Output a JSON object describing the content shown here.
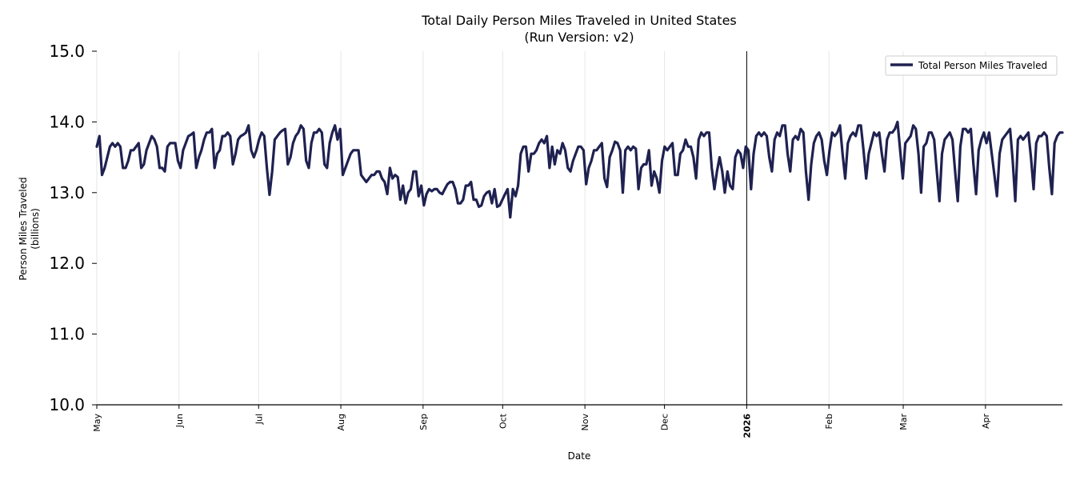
{
  "chart_data": {
    "type": "line",
    "title": "Total Daily Person Miles Traveled in United States",
    "subtitle": "(Run Version: v2)",
    "xlabel": "Date",
    "ylabel": "Person Miles Traveled",
    "ylabel_unit": "(billions)",
    "ylim": [
      10.0,
      15.0
    ],
    "yticks": [
      "10.0",
      "11.0",
      "12.0",
      "13.0",
      "14.0",
      "15.0"
    ],
    "x_range": [
      "2025-05-01",
      "2026-04-30"
    ],
    "xticks": [
      {
        "date": "2025-05-01",
        "label": "May"
      },
      {
        "date": "2025-06-01",
        "label": "Jun"
      },
      {
        "date": "2025-07-01",
        "label": "Jul"
      },
      {
        "date": "2025-08-01",
        "label": "Aug"
      },
      {
        "date": "2025-09-01",
        "label": "Sep"
      },
      {
        "date": "2025-10-01",
        "label": "Oct"
      },
      {
        "date": "2025-11-01",
        "label": "Nov"
      },
      {
        "date": "2025-12-01",
        "label": "Dec"
      },
      {
        "date": "2026-01-01",
        "label": "2026",
        "bold": true
      },
      {
        "date": "2026-02-01",
        "label": "Feb"
      },
      {
        "date": "2026-03-01",
        "label": "Mar"
      },
      {
        "date": "2026-04-01",
        "label": "Apr"
      }
    ],
    "grid": "vertical",
    "legend_position": "top-right",
    "colors": {
      "line": "#1f2150",
      "grid": "#e6e6e6",
      "axis": "#000000"
    },
    "series": [
      {
        "name": "Total Person Miles Traveled",
        "x_start": "2025-05-01",
        "x_step": "1 day",
        "values": [
          13.65,
          13.8,
          13.25,
          13.35,
          13.5,
          13.65,
          13.7,
          13.65,
          13.7,
          13.65,
          13.35,
          13.35,
          13.45,
          13.6,
          13.6,
          13.65,
          13.7,
          13.35,
          13.4,
          13.6,
          13.7,
          13.8,
          13.75,
          13.65,
          13.35,
          13.35,
          13.3,
          13.65,
          13.7,
          13.7,
          13.7,
          13.45,
          13.35,
          13.6,
          13.7,
          13.8,
          13.82,
          13.85,
          13.35,
          13.5,
          13.6,
          13.75,
          13.85,
          13.85,
          13.9,
          13.35,
          13.55,
          13.6,
          13.8,
          13.8,
          13.85,
          13.8,
          13.4,
          13.55,
          13.75,
          13.8,
          13.82,
          13.85,
          13.95,
          13.6,
          13.5,
          13.6,
          13.75,
          13.85,
          13.8,
          13.35,
          12.97,
          13.3,
          13.75,
          13.8,
          13.85,
          13.88,
          13.9,
          13.4,
          13.5,
          13.7,
          13.8,
          13.85,
          13.95,
          13.9,
          13.45,
          13.35,
          13.7,
          13.85,
          13.85,
          13.9,
          13.85,
          13.4,
          13.35,
          13.7,
          13.85,
          13.95,
          13.75,
          13.9,
          13.25,
          13.35,
          13.45,
          13.55,
          13.6,
          13.6,
          13.6,
          13.25,
          13.2,
          13.15,
          13.2,
          13.25,
          13.25,
          13.3,
          13.3,
          13.2,
          13.15,
          12.98,
          13.35,
          13.2,
          13.25,
          13.22,
          12.9,
          13.1,
          12.85,
          13.0,
          13.05,
          13.3,
          13.3,
          12.95,
          13.1,
          12.82,
          12.98,
          13.05,
          13.02,
          13.05,
          13.05,
          13.0,
          12.98,
          13.05,
          13.12,
          13.15,
          13.15,
          13.05,
          12.85,
          12.85,
          12.9,
          13.1,
          13.1,
          13.15,
          12.9,
          12.9,
          12.8,
          12.82,
          12.95,
          13.0,
          13.02,
          12.85,
          13.05,
          12.8,
          12.82,
          12.9,
          12.98,
          13.05,
          12.65,
          13.05,
          12.95,
          13.1,
          13.55,
          13.65,
          13.65,
          13.3,
          13.55,
          13.55,
          13.6,
          13.7,
          13.75,
          13.7,
          13.8,
          13.35,
          13.65,
          13.4,
          13.6,
          13.55,
          13.7,
          13.6,
          13.35,
          13.3,
          13.45,
          13.55,
          13.65,
          13.65,
          13.6,
          13.12,
          13.35,
          13.45,
          13.6,
          13.6,
          13.65,
          13.7,
          13.2,
          13.08,
          13.5,
          13.6,
          13.72,
          13.7,
          13.6,
          13.0,
          13.6,
          13.65,
          13.6,
          13.65,
          13.62,
          13.05,
          13.35,
          13.4,
          13.4,
          13.6,
          13.1,
          13.3,
          13.2,
          13.0,
          13.45,
          13.65,
          13.6,
          13.65,
          13.7,
          13.25,
          13.25,
          13.55,
          13.6,
          13.75,
          13.65,
          13.65,
          13.5,
          13.2,
          13.75,
          13.85,
          13.8,
          13.85,
          13.85,
          13.35,
          13.05,
          13.3,
          13.5,
          13.3,
          13.0,
          13.3,
          13.1,
          13.05,
          13.5,
          13.6,
          13.55,
          13.35,
          13.65,
          13.6,
          13.05,
          13.55,
          13.8,
          13.85,
          13.8,
          13.85,
          13.8,
          13.5,
          13.3,
          13.75,
          13.85,
          13.8,
          13.95,
          13.95,
          13.55,
          13.3,
          13.75,
          13.8,
          13.75,
          13.9,
          13.85,
          13.3,
          12.9,
          13.4,
          13.7,
          13.8,
          13.85,
          13.75,
          13.45,
          13.25,
          13.6,
          13.85,
          13.8,
          13.85,
          13.95,
          13.55,
          13.2,
          13.7,
          13.8,
          13.85,
          13.8,
          13.95,
          13.95,
          13.6,
          13.2,
          13.55,
          13.7,
          13.85,
          13.8,
          13.85,
          13.55,
          13.3,
          13.75,
          13.85,
          13.85,
          13.9,
          14.0,
          13.6,
          13.2,
          13.7,
          13.75,
          13.8,
          13.95,
          13.9,
          13.55,
          13.0,
          13.65,
          13.7,
          13.85,
          13.85,
          13.75,
          13.3,
          12.88,
          13.55,
          13.75,
          13.8,
          13.85,
          13.75,
          13.3,
          12.88,
          13.65,
          13.9,
          13.9,
          13.85,
          13.9,
          13.4,
          12.98,
          13.6,
          13.75,
          13.85,
          13.7,
          13.85,
          13.55,
          13.25,
          12.95,
          13.55,
          13.75,
          13.8,
          13.85,
          13.9,
          13.45,
          12.88,
          13.75,
          13.8,
          13.75,
          13.8,
          13.85,
          13.5,
          13.05,
          13.7,
          13.8,
          13.8,
          13.85,
          13.8,
          13.35,
          12.98,
          13.7,
          13.8,
          13.85,
          13.85
        ]
      }
    ]
  }
}
